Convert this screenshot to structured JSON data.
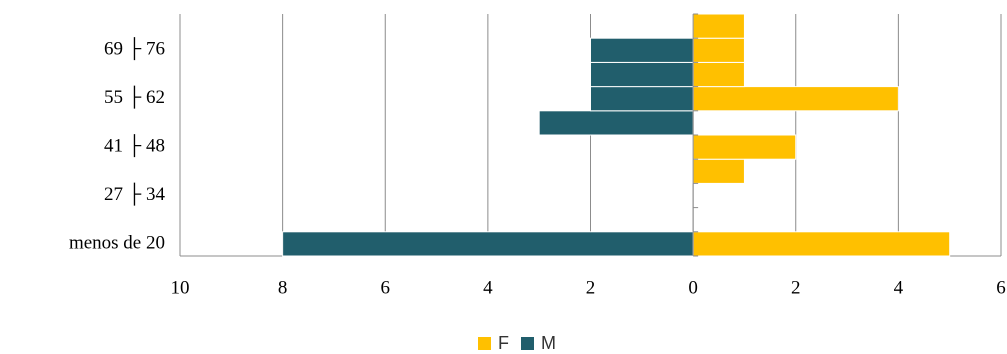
{
  "chart_data": {
    "type": "bar",
    "orientation": "horizontal",
    "categories": [
      "menos de 20",
      null,
      "27 ├ 34",
      null,
      "41 ├ 48",
      null,
      "55 ├ 62",
      null,
      "69 ├ 76",
      null
    ],
    "series": [
      {
        "name": "F",
        "color": "#FFC000",
        "values": [
          5,
          0,
          0,
          1,
          2,
          0,
          4,
          1,
          1,
          1
        ]
      },
      {
        "name": "M",
        "color": "#215E6C",
        "values": [
          -8,
          0,
          0,
          0,
          0,
          -3,
          -2,
          -2,
          -2,
          0
        ]
      }
    ],
    "xlim": [
      -10,
      6
    ],
    "xticks": [
      {
        "value": -10,
        "label": "10"
      },
      {
        "value": -8,
        "label": "8"
      },
      {
        "value": -6,
        "label": "6"
      },
      {
        "value": -4,
        "label": "4"
      },
      {
        "value": -2,
        "label": "2"
      },
      0,
      2,
      4,
      6
    ],
    "grid": true,
    "legend": "bottom"
  }
}
